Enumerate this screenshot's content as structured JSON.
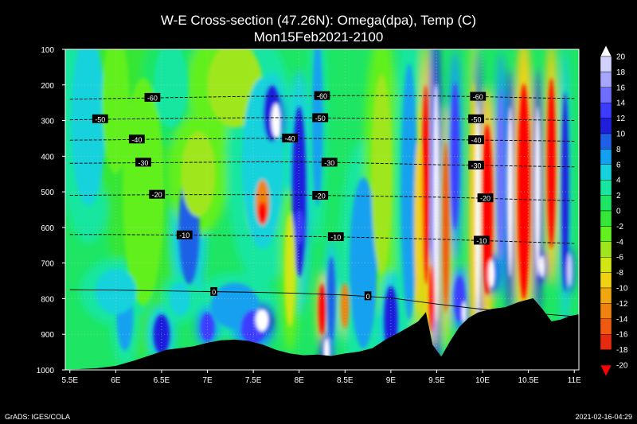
{
  "chart_data": {
    "type": "heatmap",
    "title": "W-E Cross-section (47.26N): Omega(dpa), Temp (C)",
    "subtitle": "Mon15Feb2021-2100",
    "x_ticks": [
      "5.5E",
      "6E",
      "6.5E",
      "7E",
      "7.5E",
      "8E",
      "8.5E",
      "9E",
      "9.5E",
      "10E",
      "10.5E",
      "11E"
    ],
    "x_values": [
      5.5,
      6,
      6.5,
      7,
      7.5,
      8,
      8.5,
      9,
      9.5,
      10,
      10.5,
      11
    ],
    "xlim": [
      5.45,
      11.05
    ],
    "y_ticks": [
      "100",
      "200",
      "300",
      "400",
      "500",
      "600",
      "700",
      "800",
      "900",
      "1000"
    ],
    "y_values": [
      100,
      200,
      300,
      400,
      500,
      600,
      700,
      800,
      900,
      1000
    ],
    "ylim": [
      100,
      1000
    ],
    "colorbar": {
      "levels": [
        "20",
        "18",
        "16",
        "14",
        "12",
        "10",
        "8",
        "6",
        "4",
        "2",
        "0",
        "-2",
        "-4",
        "-6",
        "-8",
        "-10",
        "-12",
        "-14",
        "-16",
        "-18",
        "-20"
      ],
      "colors": [
        "#ffffff",
        "#d2d2ff",
        "#a6a6ff",
        "#6f6fff",
        "#3c3cff",
        "#1e1edc",
        "#1e60e6",
        "#14a0f0",
        "#16d2dc",
        "#16e6a0",
        "#1ee664",
        "#34e636",
        "#62f01e",
        "#a0e61e",
        "#d2e614",
        "#f0d212",
        "#f0a810",
        "#f08210",
        "#f05a10",
        "#e62a10",
        "#ff0000"
      ]
    },
    "temperature_contours": [
      {
        "label": "-60",
        "p": [
          240,
          238,
          236,
          234,
          232,
          231,
          230,
          230,
          231,
          233,
          236,
          238
        ]
      },
      {
        "label": "-50",
        "p": [
          298,
          296,
          294,
          293,
          292,
          292,
          293,
          294,
          295,
          296,
          298,
          300
        ]
      },
      {
        "label": "-40",
        "p": [
          355,
          354,
          352,
          351,
          350,
          350,
          351,
          352,
          353,
          355,
          356,
          358
        ]
      },
      {
        "label": "-30",
        "p": [
          420,
          419,
          418,
          417,
          416,
          416,
          418,
          421,
          424,
          426,
          428,
          430
        ]
      },
      {
        "label": "-20",
        "p": [
          510,
          509,
          508,
          508,
          508,
          509,
          511,
          513,
          515,
          518,
          522,
          525
        ]
      },
      {
        "label": "-10",
        "p": [
          620,
          620,
          621,
          622,
          623,
          625,
          627,
          630,
          633,
          637,
          641,
          645
        ]
      },
      {
        "label": "0",
        "p": [
          775,
          776,
          778,
          780,
          782,
          785,
          790,
          798,
          815,
          830,
          840,
          850
        ]
      }
    ],
    "contour_labels": [
      {
        "label": "-60",
        "x": 6.4,
        "p": 236
      },
      {
        "label": "-60",
        "x": 8.25,
        "p": 231
      },
      {
        "label": "-60",
        "x": 9.95,
        "p": 233
      },
      {
        "label": "-50",
        "x": 5.83,
        "p": 296
      },
      {
        "label": "-50",
        "x": 8.23,
        "p": 293
      },
      {
        "label": "-50",
        "x": 9.93,
        "p": 296
      },
      {
        "label": "-40",
        "x": 6.23,
        "p": 353
      },
      {
        "label": "-40",
        "x": 7.9,
        "p": 350
      },
      {
        "label": "-40",
        "x": 9.93,
        "p": 355
      },
      {
        "label": "-30",
        "x": 6.3,
        "p": 418
      },
      {
        "label": "-30",
        "x": 8.33,
        "p": 418
      },
      {
        "label": "-30",
        "x": 9.93,
        "p": 426
      },
      {
        "label": "-20",
        "x": 6.45,
        "p": 508
      },
      {
        "label": "-20",
        "x": 8.23,
        "p": 511
      },
      {
        "label": "-20",
        "x": 10.03,
        "p": 518
      },
      {
        "label": "-10",
        "x": 6.75,
        "p": 622
      },
      {
        "label": "-10",
        "x": 8.4,
        "p": 627
      },
      {
        "label": "-10",
        "x": 9.99,
        "p": 637
      },
      {
        "label": "0",
        "x": 7.07,
        "p": 781
      },
      {
        "label": "0",
        "x": 8.75,
        "p": 793
      }
    ],
    "terrain_surface_p": [
      [
        5.45,
        1000
      ],
      [
        5.6,
        999
      ],
      [
        5.8,
        996
      ],
      [
        6.0,
        990
      ],
      [
        6.2,
        975
      ],
      [
        6.4,
        958
      ],
      [
        6.55,
        945
      ],
      [
        6.7,
        940
      ],
      [
        6.85,
        935
      ],
      [
        7.0,
        925
      ],
      [
        7.15,
        918
      ],
      [
        7.3,
        916
      ],
      [
        7.45,
        920
      ],
      [
        7.6,
        930
      ],
      [
        7.75,
        945
      ],
      [
        7.9,
        955
      ],
      [
        8.05,
        960
      ],
      [
        8.2,
        958
      ],
      [
        8.35,
        962
      ],
      [
        8.5,
        955
      ],
      [
        8.65,
        950
      ],
      [
        8.8,
        940
      ],
      [
        8.95,
        915
      ],
      [
        9.1,
        895
      ],
      [
        9.2,
        880
      ],
      [
        9.3,
        865
      ],
      [
        9.38,
        840
      ],
      [
        9.45,
        930
      ],
      [
        9.55,
        965
      ],
      [
        9.65,
        920
      ],
      [
        9.75,
        880
      ],
      [
        9.85,
        855
      ],
      [
        9.95,
        840
      ],
      [
        10.1,
        830
      ],
      [
        10.25,
        825
      ],
      [
        10.4,
        810
      ],
      [
        10.55,
        800
      ],
      [
        10.65,
        830
      ],
      [
        10.75,
        865
      ],
      [
        10.85,
        860
      ],
      [
        10.95,
        850
      ],
      [
        11.05,
        845
      ]
    ]
  },
  "footer": {
    "left": "GrADS: IGES/COLA",
    "right": "2021-02-16-04:29"
  }
}
